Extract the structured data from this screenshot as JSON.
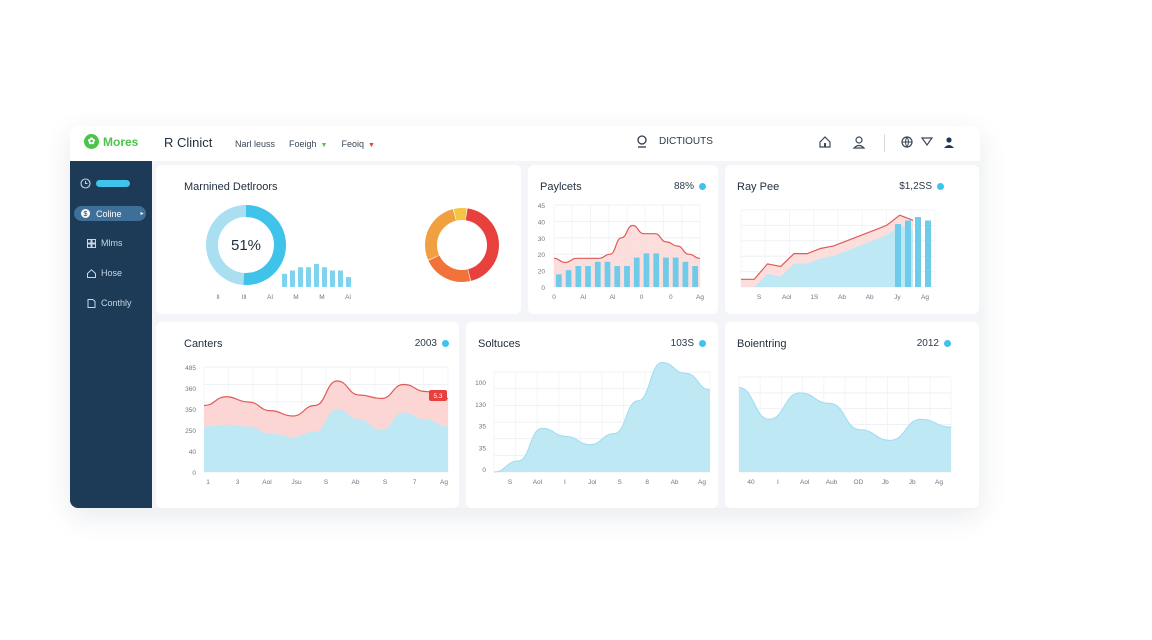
{
  "brand": {
    "name": "Mores",
    "icon": "leaf-icon"
  },
  "header": {
    "title": "R Clinict",
    "nav": [
      {
        "label": "Narl leuss"
      },
      {
        "label": "Foeigh",
        "caret_color": "#4cc44a"
      },
      {
        "label": "Feoiq",
        "caret_color": "#e0403c"
      }
    ],
    "search_label": "DICTIOUTS",
    "icons": [
      "home-icon",
      "user-icon",
      "globe-icon",
      "filter-icon",
      "profile-icon"
    ]
  },
  "sidebar": {
    "items": [
      {
        "label": "",
        "icon": "clock-icon"
      },
      {
        "label": "Coline",
        "icon": "dollar-icon",
        "active": true
      },
      {
        "label": "Mlms",
        "icon": "grid-icon"
      },
      {
        "label": "Hose",
        "icon": "home-icon"
      },
      {
        "label": "Conthly",
        "icon": "document-icon"
      }
    ]
  },
  "cards": {
    "maintained": {
      "title": "Marnined Detlroors",
      "donut_label": "51%",
      "donut_percent": 51,
      "x_labels": [
        "Il",
        "Ill",
        "Al",
        "M",
        "M",
        "Al"
      ]
    },
    "paylcets": {
      "title": "Paylcets",
      "value": "88%",
      "y_labels": [
        "45",
        "40",
        "30",
        "20",
        "20",
        "0"
      ],
      "x_labels": [
        "0",
        "Al",
        "Al",
        "0",
        "0",
        "Ag"
      ]
    },
    "raypee": {
      "title": "Ray Pee",
      "value": "$1,2SS",
      "x_labels": [
        "S",
        "Aol",
        "1S",
        "Ab",
        "Ab",
        "Jy",
        "Ag"
      ]
    },
    "canters": {
      "title": "Canters",
      "value": "2003",
      "badge": "5.3",
      "y_labels": [
        "485",
        "360",
        "350",
        "250",
        "40",
        "0"
      ],
      "x_labels": [
        "1",
        "3",
        "Aol",
        "Jsu",
        "S",
        "Ab",
        "S",
        "7",
        "Ag"
      ]
    },
    "soltuces": {
      "title": "Soltuces",
      "value": "103S",
      "y_labels": [
        "100",
        "130",
        "35",
        "35",
        "0"
      ],
      "x_labels": [
        "S",
        "Aol",
        "I",
        "Jol",
        "S",
        "8",
        "Ab",
        "Ag"
      ]
    },
    "boientring": {
      "title": "Boientring",
      "value": "2012",
      "x_labels": [
        "40",
        "I",
        "Aol",
        "Aub",
        "OD",
        "Jb",
        "Jb",
        "Ag"
      ]
    }
  },
  "colors": {
    "accent": "#3fc3ea",
    "red": "#e0403c",
    "orange": "#f2733a",
    "sidebar": "#1d3b57",
    "green": "#4cc44a"
  },
  "chart_data": [
    {
      "type": "pie",
      "title": "Marnined Detlroors",
      "values": [
        51,
        49
      ]
    },
    {
      "type": "bar",
      "title": "Marnined Detlroors",
      "values": [
        4,
        5,
        6,
        6,
        7,
        6,
        5,
        5,
        3
      ]
    },
    {
      "type": "pie",
      "values": [
        44,
        22,
        28,
        6
      ]
    },
    {
      "type": "bar",
      "title": "Paylcets",
      "values": [
        3,
        4,
        5,
        5,
        6,
        6,
        5,
        5,
        7,
        8,
        8,
        7,
        7,
        6,
        5
      ]
    },
    {
      "type": "line",
      "title": "Paylcets",
      "values": [
        7,
        6,
        7,
        7,
        7,
        8,
        12,
        15,
        13,
        13,
        11,
        10,
        8,
        7
      ]
    },
    {
      "type": "line",
      "title": "Ray Pee",
      "values": [
        3,
        3,
        9,
        8,
        13,
        13,
        15,
        16,
        18,
        20,
        22,
        24,
        28,
        26
      ]
    },
    {
      "type": "bar",
      "title": "Ray Pee",
      "values": [
        18,
        19,
        20,
        19
      ]
    },
    {
      "type": "area",
      "title": "Canters",
      "series": [
        {
          "values": [
            130,
            135,
            130,
            110,
            100,
            115,
            180,
            150,
            120,
            170,
            150,
            130
          ]
        },
        {
          "values": [
            190,
            215,
            200,
            175,
            160,
            190,
            260,
            220,
            210,
            250,
            230,
            210
          ]
        }
      ]
    },
    {
      "type": "area",
      "title": "Soltuces",
      "values": [
        0,
        20,
        80,
        65,
        50,
        70,
        130,
        200,
        180,
        150
      ]
    },
    {
      "type": "area",
      "title": "Boientring",
      "values": [
        160,
        100,
        150,
        130,
        80,
        60,
        100,
        85
      ]
    }
  ]
}
